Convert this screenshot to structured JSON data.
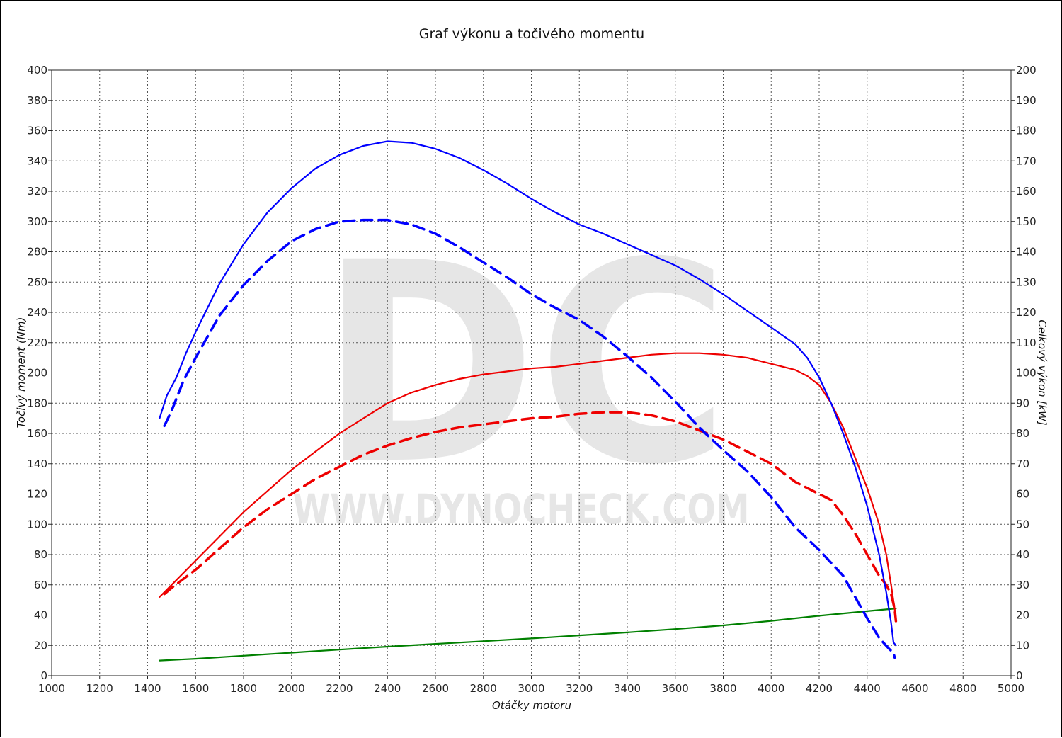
{
  "chart_data": {
    "type": "line",
    "title": "Graf výkonu a točivého momentu",
    "xlabel": "Otáčky motoru",
    "ylabel_left": "Točivý moment (Nm)",
    "ylabel_right": "Celkový výkon [kW]",
    "xlim": [
      1000,
      5000
    ],
    "ylim_left": [
      0,
      400
    ],
    "ylim_right": [
      0,
      200
    ],
    "x_ticks": [
      1000,
      1200,
      1400,
      1600,
      1800,
      2000,
      2200,
      2400,
      2600,
      2800,
      3000,
      3200,
      3400,
      3600,
      3800,
      4000,
      4200,
      4400,
      4600,
      4800,
      5000
    ],
    "y_ticks_left": [
      0,
      20,
      40,
      60,
      80,
      100,
      120,
      140,
      160,
      180,
      200,
      220,
      240,
      260,
      280,
      300,
      320,
      340,
      360,
      380,
      400
    ],
    "y_ticks_right": [
      0,
      10,
      20,
      30,
      40,
      50,
      60,
      70,
      80,
      90,
      100,
      110,
      120,
      130,
      140,
      150,
      160,
      170,
      180,
      190,
      200
    ],
    "grid": true,
    "watermark": {
      "letters": "DC",
      "text": "WWW.DYNOCHECK.COM"
    },
    "series": [
      {
        "axis": "left",
        "color": "#0000ff",
        "style": "solid",
        "x": [
          1450,
          1480,
          1520,
          1560,
          1600,
          1700,
          1800,
          1900,
          2000,
          2100,
          2200,
          2300,
          2400,
          2500,
          2600,
          2700,
          2800,
          2900,
          3000,
          3100,
          3200,
          3300,
          3400,
          3500,
          3600,
          3700,
          3800,
          3900,
          4000,
          4100,
          4150,
          4200,
          4250,
          4300,
          4350,
          4400,
          4450,
          4480,
          4500,
          4510,
          4520
        ],
        "y": [
          170,
          185,
          197,
          213,
          227,
          259,
          285,
          306,
          322,
          335,
          344,
          350,
          353,
          352,
          348,
          342,
          334,
          325,
          315,
          306,
          298,
          292,
          285,
          278,
          271,
          262,
          252,
          241,
          230,
          219,
          210,
          197,
          180,
          160,
          138,
          112,
          80,
          55,
          35,
          22,
          20
        ]
      },
      {
        "axis": "left",
        "color": "#0000ff",
        "style": "dashed",
        "x": [
          1470,
          1500,
          1550,
          1600,
          1700,
          1800,
          1900,
          2000,
          2100,
          2200,
          2300,
          2400,
          2500,
          2600,
          2700,
          2800,
          2900,
          3000,
          3100,
          3200,
          3300,
          3400,
          3500,
          3600,
          3700,
          3800,
          3900,
          4000,
          4100,
          4200,
          4300,
          4350,
          4400,
          4450,
          4490,
          4510,
          4515
        ],
        "y": [
          165,
          175,
          195,
          210,
          238,
          258,
          274,
          287,
          295,
          300,
          301,
          301,
          298,
          292,
          283,
          273,
          263,
          252,
          243,
          235,
          224,
          211,
          197,
          181,
          164,
          149,
          135,
          118,
          98,
          83,
          66,
          52,
          38,
          25,
          18,
          15,
          12
        ]
      },
      {
        "axis": "right",
        "color": "#ee0000",
        "style": "solid",
        "x": [
          1450,
          1500,
          1600,
          1700,
          1800,
          1900,
          2000,
          2100,
          2200,
          2300,
          2400,
          2500,
          2600,
          2700,
          2800,
          2900,
          3000,
          3100,
          3200,
          3300,
          3400,
          3500,
          3600,
          3700,
          3800,
          3900,
          4000,
          4100,
          4150,
          4200,
          4250,
          4300,
          4350,
          4400,
          4450,
          4480,
          4500,
          4515,
          4520
        ],
        "y": [
          26,
          30,
          38,
          46,
          54,
          61,
          68,
          74,
          80,
          85,
          90,
          93.5,
          96,
          98,
          99.5,
          100.5,
          101.5,
          102,
          103,
          104,
          105,
          106,
          106.5,
          106.5,
          106,
          105,
          103,
          101,
          99,
          96,
          90,
          82,
          72,
          62,
          50,
          40,
          30,
          22,
          18
        ]
      },
      {
        "axis": "right",
        "color": "#ee0000",
        "style": "dashed",
        "x": [
          1470,
          1500,
          1600,
          1700,
          1800,
          1900,
          2000,
          2100,
          2200,
          2300,
          2400,
          2500,
          2600,
          2700,
          2800,
          2900,
          3000,
          3100,
          3200,
          3300,
          3400,
          3500,
          3600,
          3700,
          3800,
          3900,
          4000,
          4100,
          4200,
          4250,
          4300,
          4350,
          4400,
          4450,
          4480,
          4500,
          4515,
          4520
        ],
        "y": [
          27,
          29,
          35,
          42,
          49,
          55,
          60,
          65,
          69,
          73,
          76,
          78.5,
          80.5,
          82,
          83,
          84,
          85,
          85.5,
          86.5,
          87,
          87,
          86,
          84,
          81,
          78,
          74,
          70,
          64,
          60,
          58,
          53,
          47,
          40,
          33,
          30,
          27,
          22,
          18
        ]
      },
      {
        "axis": "right",
        "color": "#008000",
        "style": "solid",
        "x": [
          1450,
          1600,
          1800,
          2000,
          2200,
          2400,
          2600,
          2800,
          3000,
          3200,
          3400,
          3600,
          3800,
          4000,
          4200,
          4400,
          4520
        ],
        "y": [
          5,
          5.6,
          6.6,
          7.6,
          8.6,
          9.6,
          10.5,
          11.4,
          12.3,
          13.3,
          14.3,
          15.4,
          16.6,
          18.1,
          19.8,
          21.3,
          22.2
        ]
      }
    ]
  }
}
